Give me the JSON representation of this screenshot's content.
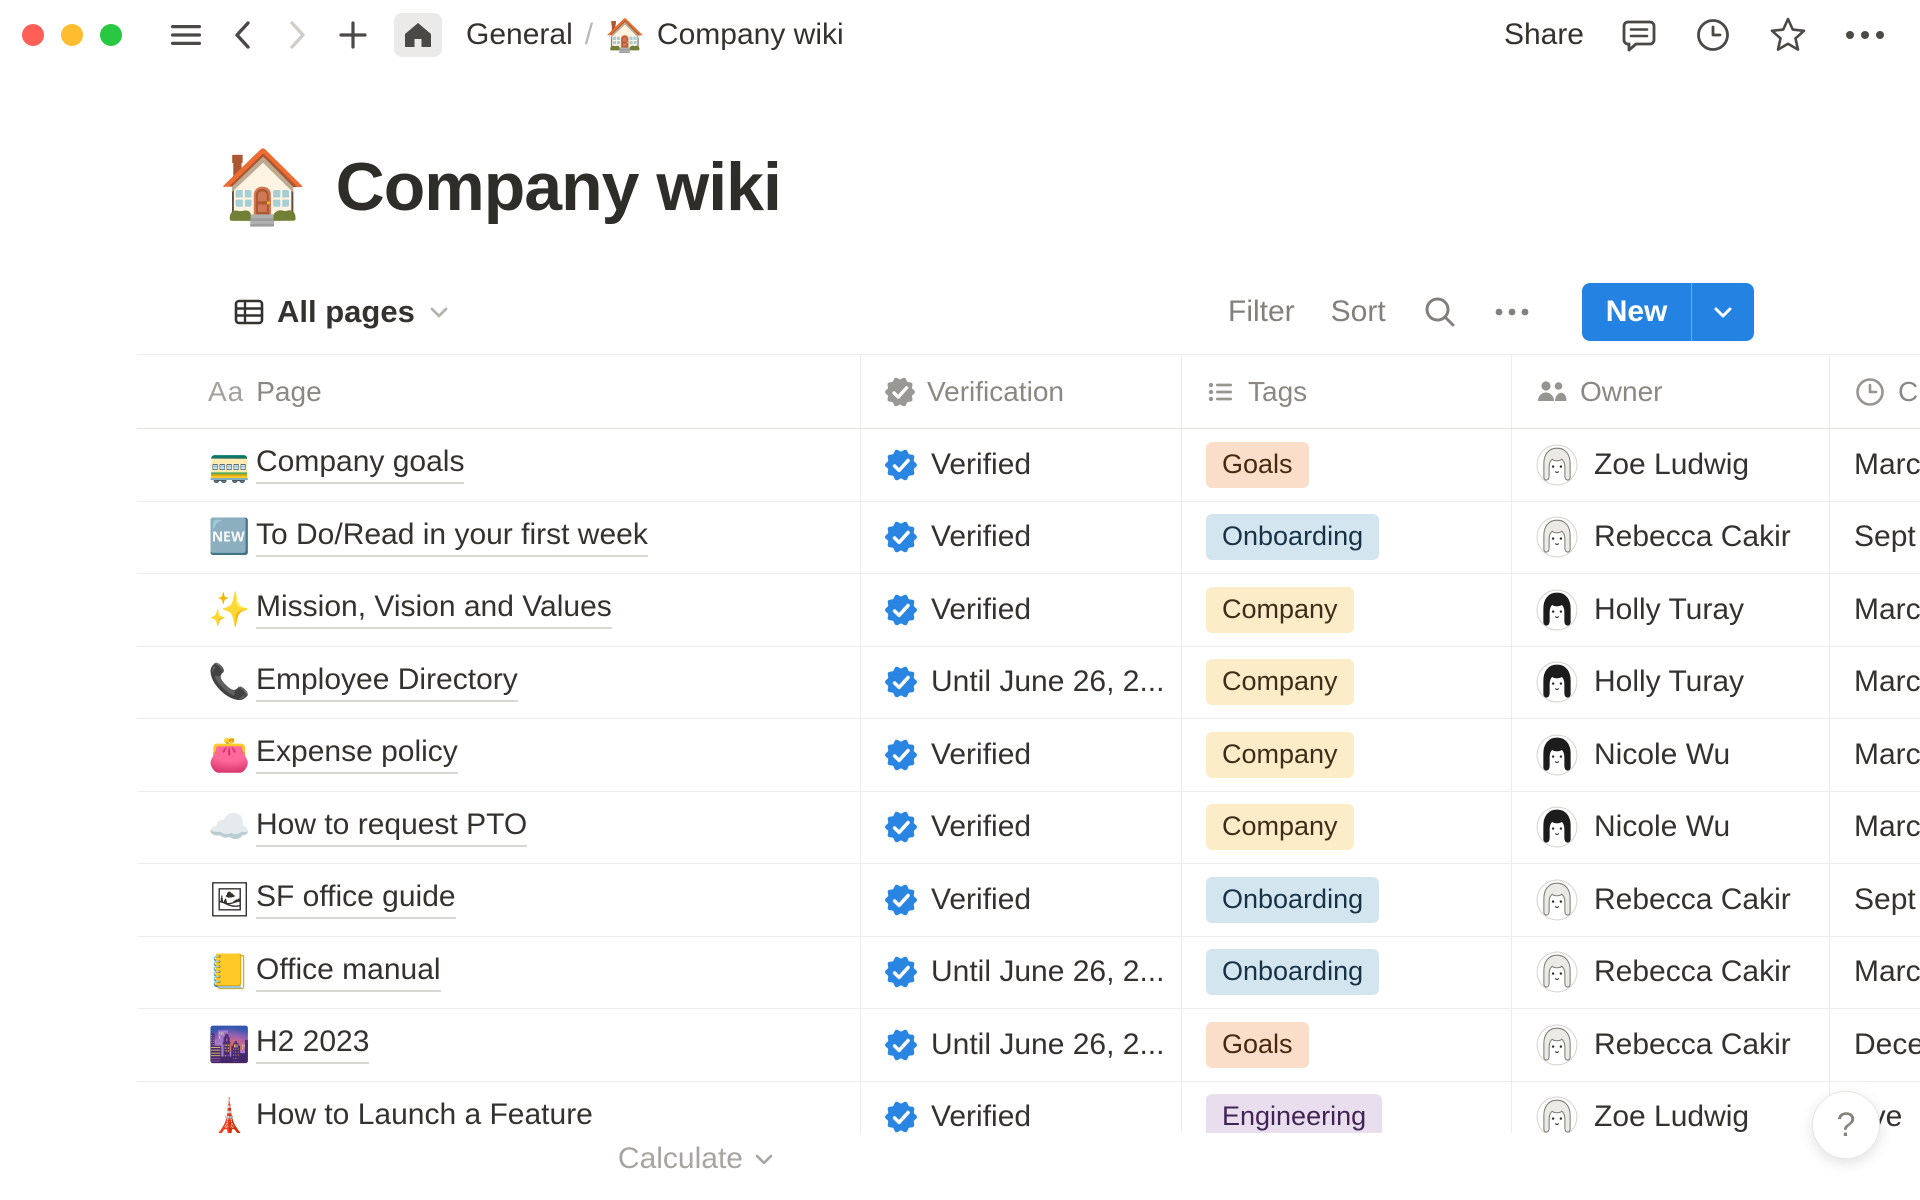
{
  "topbar": {
    "breadcrumb": {
      "section": "General",
      "separator": "/",
      "page_icon": "🏠",
      "page": "Company wiki"
    },
    "share_label": "Share"
  },
  "title": {
    "icon": "🏠",
    "text": "Company wiki"
  },
  "toolbar": {
    "view_label": "All pages",
    "filter_label": "Filter",
    "sort_label": "Sort",
    "new_label": "New"
  },
  "table": {
    "columns": [
      {
        "key": "page",
        "icon": "Aa",
        "label": "Page"
      },
      {
        "key": "verification",
        "icon": "verified-badge",
        "label": "Verification"
      },
      {
        "key": "tags",
        "icon": "list",
        "label": "Tags"
      },
      {
        "key": "owner",
        "icon": "people",
        "label": "Owner"
      },
      {
        "key": "created",
        "icon": "clock",
        "label": "C"
      }
    ],
    "rows": [
      {
        "icon": "🚃",
        "page": "Company goals",
        "verification": "Verified",
        "tag": {
          "label": "Goals",
          "color": "orange"
        },
        "owner": {
          "name": "Zoe Ludwig",
          "hair": "light"
        },
        "created": "Marc"
      },
      {
        "icon": "🆕",
        "page": "To Do/Read in your first week",
        "verification": "Verified",
        "tag": {
          "label": "Onboarding",
          "color": "blue"
        },
        "owner": {
          "name": "Rebecca Cakir",
          "hair": "light"
        },
        "created": "Sept"
      },
      {
        "icon": "✨",
        "page": "Mission, Vision and Values",
        "verification": "Verified",
        "tag": {
          "label": "Company",
          "color": "yellow"
        },
        "owner": {
          "name": "Holly Turay",
          "hair": "dark"
        },
        "created": "Marc"
      },
      {
        "icon": "📞",
        "page": "Employee Directory",
        "verification": "Until June 26, 2...",
        "tag": {
          "label": "Company",
          "color": "yellow"
        },
        "owner": {
          "name": "Holly Turay",
          "hair": "dark"
        },
        "created": "Marc"
      },
      {
        "icon": "👛",
        "page": "Expense policy",
        "verification": "Verified",
        "tag": {
          "label": "Company",
          "color": "yellow"
        },
        "owner": {
          "name": "Nicole Wu",
          "hair": "dark"
        },
        "created": "Marc"
      },
      {
        "icon": "☁️",
        "page": "How to request PTO",
        "verification": "Verified",
        "tag": {
          "label": "Company",
          "color": "yellow"
        },
        "owner": {
          "name": "Nicole Wu",
          "hair": "dark"
        },
        "created": "Marc"
      },
      {
        "icon": "🖼",
        "page": "SF office guide",
        "verification": "Verified",
        "tag": {
          "label": "Onboarding",
          "color": "blue"
        },
        "owner": {
          "name": "Rebecca Cakir",
          "hair": "light"
        },
        "created": "Sept"
      },
      {
        "icon": "📒",
        "page": "Office manual",
        "verification": "Until June 26, 2...",
        "tag": {
          "label": "Onboarding",
          "color": "blue"
        },
        "owner": {
          "name": "Rebecca Cakir",
          "hair": "light"
        },
        "created": "Marc"
      },
      {
        "icon": "🌆",
        "page": "H2 2023",
        "verification": "Until June 26, 2...",
        "tag": {
          "label": "Goals",
          "color": "orange"
        },
        "owner": {
          "name": "Rebecca Cakir",
          "hair": "light"
        },
        "created": "Dece"
      },
      {
        "icon": "🗼",
        "page": "How to Launch a Feature",
        "verification": "Verified",
        "tag": {
          "label": "Engineering",
          "color": "purple"
        },
        "owner": {
          "name": "Zoe Ludwig",
          "hair": "light"
        },
        "created": "ove"
      }
    ]
  },
  "footer": {
    "calculate_label": "Calculate"
  },
  "help": {
    "label": "?"
  },
  "colors": {
    "accent_blue": "#2483e2",
    "badge_blue": "#2a85e2",
    "tag": {
      "orange": {
        "bg": "#fadec9",
        "text": "#49290e"
      },
      "blue": {
        "bg": "#d3e5ef",
        "text": "#183347"
      },
      "yellow": {
        "bg": "#fdecc8",
        "text": "#402c1b"
      },
      "purple": {
        "bg": "#e8deee",
        "text": "#412454"
      }
    }
  }
}
